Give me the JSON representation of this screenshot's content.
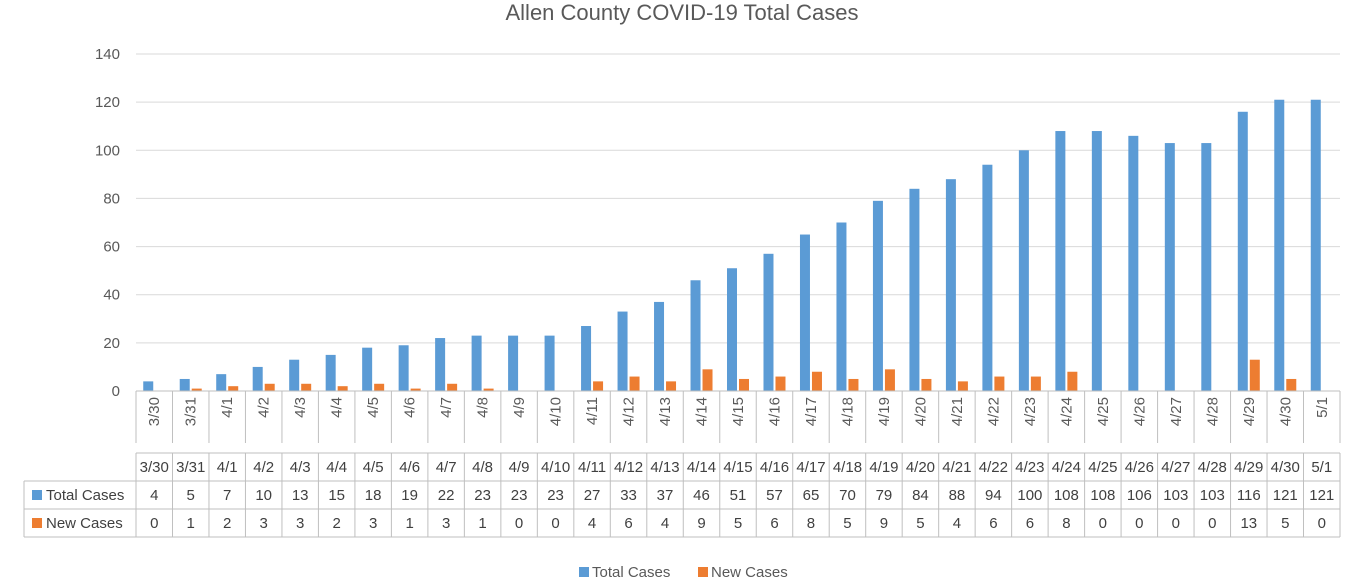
{
  "chart_data": {
    "type": "bar",
    "title": "Allen County COVID-19 Total Cases",
    "xlabel": "",
    "ylabel": "",
    "ylim": [
      0,
      140
    ],
    "yticks": [
      0,
      20,
      40,
      60,
      80,
      100,
      120,
      140
    ],
    "grid": true,
    "legend_position": "bottom",
    "data_table": true,
    "categories": [
      "3/30",
      "3/31",
      "4/1",
      "4/2",
      "4/3",
      "4/4",
      "4/5",
      "4/6",
      "4/7",
      "4/8",
      "4/9",
      "4/10",
      "4/11",
      "4/12",
      "4/13",
      "4/14",
      "4/15",
      "4/16",
      "4/17",
      "4/18",
      "4/19",
      "4/20",
      "4/21",
      "4/22",
      "4/23",
      "4/24",
      "4/25",
      "4/26",
      "4/27",
      "4/28",
      "4/29",
      "4/30",
      "5/1"
    ],
    "series": [
      {
        "name": "Total Cases",
        "color": "#5B9BD5",
        "values": [
          4,
          5,
          7,
          10,
          13,
          15,
          18,
          19,
          22,
          23,
          23,
          23,
          27,
          33,
          37,
          46,
          51,
          57,
          65,
          70,
          79,
          84,
          88,
          94,
          100,
          108,
          108,
          106,
          103,
          103,
          116,
          121,
          121
        ]
      },
      {
        "name": "New Cases",
        "color": "#ED7D31",
        "values": [
          0,
          1,
          2,
          3,
          3,
          2,
          3,
          1,
          3,
          1,
          0,
          0,
          4,
          6,
          4,
          9,
          5,
          6,
          8,
          5,
          9,
          5,
          4,
          6,
          6,
          8,
          0,
          0,
          0,
          0,
          13,
          5,
          0
        ]
      }
    ]
  }
}
